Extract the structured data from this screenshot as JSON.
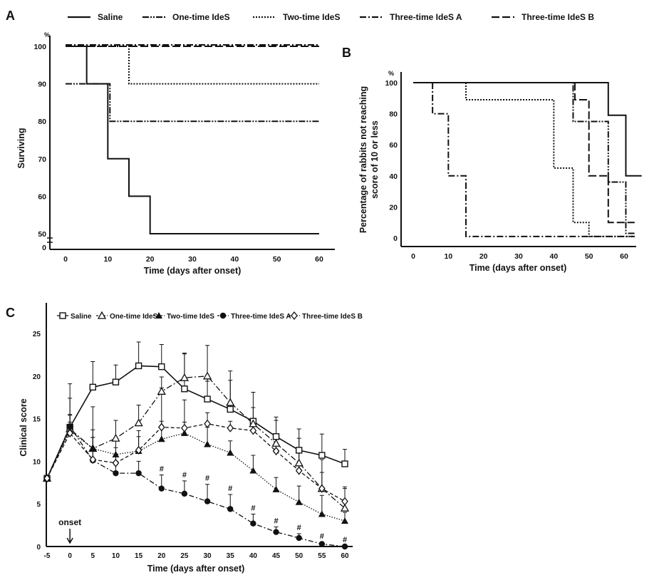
{
  "chart_data": [
    {
      "panel": "A",
      "type": "line",
      "step": true,
      "legend": [
        "Saline",
        "One-time IdeS",
        "Two-time IdeS",
        "Three-time IdeS A",
        "Three-time IdeS B"
      ],
      "legend_placement": "top",
      "xlabel": "Time (days after onset)",
      "ylabel": "Surviving",
      "yunit": "%",
      "xticks": [
        0,
        10,
        20,
        30,
        40,
        50,
        60
      ],
      "yticks": [
        50,
        60,
        70,
        80,
        90,
        100
      ],
      "ybreak_tick": 0,
      "xlim": [
        -3,
        63
      ],
      "ylim": [
        50,
        100
      ],
      "grid": false,
      "series": [
        {
          "name": "Saline",
          "points": [
            [
              0,
              100
            ],
            [
              5,
              90
            ],
            [
              10,
              70
            ],
            [
              15,
              60
            ],
            [
              20,
              50
            ],
            [
              60,
              50
            ]
          ]
        },
        {
          "name": "One-time IdeS",
          "points": [
            [
              0,
              90
            ],
            [
              10.5,
              80
            ],
            [
              60,
              80
            ]
          ]
        },
        {
          "name": "Two-time IdeS",
          "points": [
            [
              0,
              100
            ],
            [
              15,
              90
            ],
            [
              60,
              90
            ]
          ]
        },
        {
          "name": "Three-time IdeS A",
          "points": [
            [
              0,
              100
            ],
            [
              60,
              100
            ]
          ]
        },
        {
          "name": "Three-time IdeS B",
          "points": [
            [
              0,
              100
            ],
            [
              60,
              100
            ]
          ]
        }
      ]
    },
    {
      "panel": "B",
      "type": "line",
      "step": true,
      "xlabel": "Time (days after onset)",
      "ylabel": "Percentage of rabbits not reaching score of 10 or less",
      "yunit": "%",
      "xticks": [
        0,
        10,
        20,
        30,
        40,
        50,
        60
      ],
      "yticks": [
        0,
        20,
        40,
        60,
        80,
        100
      ],
      "xlim": [
        -3,
        63
      ],
      "ylim": [
        0,
        100
      ],
      "grid": false,
      "series": [
        {
          "name": "Saline",
          "points": [
            [
              0,
              100
            ],
            [
              55.5,
              79
            ],
            [
              60.5,
              40
            ],
            [
              65,
              40
            ]
          ]
        },
        {
          "name": "One-time IdeS",
          "points": [
            [
              0,
              100
            ],
            [
              45.5,
              75
            ],
            [
              55.5,
              36
            ],
            [
              60.5,
              3
            ],
            [
              63,
              3
            ]
          ]
        },
        {
          "name": "Two-time IdeS",
          "points": [
            [
              15,
              100
            ],
            [
              15,
              89
            ],
            [
              40,
              45
            ],
            [
              45.5,
              10
            ],
            [
              50,
              1
            ],
            [
              63,
              1
            ]
          ]
        },
        {
          "name": "Three-time IdeS A",
          "points": [
            [
              5.5,
              100
            ],
            [
              5.5,
              80
            ],
            [
              10,
              40
            ],
            [
              15,
              1
            ],
            [
              63,
              1
            ]
          ]
        },
        {
          "name": "Three-time IdeS B",
          "points": [
            [
              46,
              100
            ],
            [
              46,
              89
            ],
            [
              50,
              40
            ],
            [
              55.5,
              10
            ],
            [
              63,
              10
            ]
          ]
        }
      ]
    },
    {
      "panel": "C",
      "type": "line",
      "xlabel": "Time (days after onset)",
      "ylabel": "Clinical score",
      "xticks": [
        -5,
        0,
        5,
        10,
        15,
        20,
        25,
        30,
        35,
        40,
        45,
        50,
        55,
        60
      ],
      "yticks": [
        0,
        5,
        10,
        15,
        20,
        25
      ],
      "xlim": [
        -5,
        60
      ],
      "ylim": [
        0,
        28
      ],
      "grid": false,
      "legend_placement": "top",
      "annotation": "onset",
      "significance_mark": "#",
      "significance_x": [
        20,
        25,
        30,
        35,
        40,
        45,
        50,
        55,
        60
      ],
      "x": [
        -5,
        0,
        5,
        10,
        15,
        20,
        25,
        30,
        35,
        40,
        45,
        50,
        55,
        60
      ],
      "series": [
        {
          "name": "Saline",
          "marker": "open-square",
          "values": [
            8,
            14,
            18.7,
            19.3,
            21.2,
            21.1,
            18.5,
            17.3,
            16.1,
            14.7,
            12.9,
            11.3,
            10.7,
            9.7
          ],
          "error_upper": [
            null,
            19.1,
            21.7,
            21.3,
            24,
            23.7,
            22.7,
            23.6,
            20.6,
            18.1,
            15.2,
            13.8,
            13.2,
            11.4
          ]
        },
        {
          "name": "One-time IdeS",
          "marker": "open-triangle",
          "values": [
            8,
            13.8,
            11.5,
            12.7,
            14.5,
            18.2,
            19.8,
            20,
            16.9,
            14.4,
            12.1,
            9.8,
            6.8,
            4.5
          ],
          "error_upper": [
            null,
            17.4,
            16.4,
            14.8,
            16.6,
            19.9,
            22.6,
            19.4,
            19.5,
            16.3,
            14.8,
            12.7,
            10.2,
            6.8
          ]
        },
        {
          "name": "Two-time IdeS",
          "marker": "filled-triangle",
          "values": [
            8,
            13.6,
            11.5,
            10.8,
            11.2,
            12.6,
            13.3,
            12,
            11,
            8.9,
            6.7,
            5.2,
            3.8,
            3
          ],
          "error_upper": [
            null,
            15.5,
            13.7,
            12.7,
            12.9,
            14.7,
            17.2,
            14,
            12.4,
            10.7,
            8.1,
            7.1,
            6,
            4
          ]
        },
        {
          "name": "Three-time IdeS A",
          "marker": "filled-circle",
          "values": [
            8,
            14.1,
            10.1,
            8.6,
            8.6,
            6.8,
            6.2,
            5.3,
            4.4,
            2.7,
            1.7,
            1,
            0.3,
            0
          ],
          "error_upper": [
            null,
            15.4,
            12.8,
            9.6,
            10,
            8.4,
            7.7,
            7.3,
            6.1,
            3.8,
            2.3,
            1.5,
            0.5,
            0.1
          ]
        },
        {
          "name": "Three-time IdeS B",
          "marker": "open-diamond",
          "values": [
            8,
            13.3,
            10.2,
            9.8,
            11.3,
            14,
            13.9,
            14.4,
            13.9,
            13.6,
            11.2,
            8.9,
            6.8,
            5.3
          ],
          "error_upper": [
            null,
            14.6,
            12.8,
            11.6,
            13.6,
            18.6,
            14.6,
            15.7,
            14.7,
            14.4,
            13.2,
            11.3,
            8.7,
            7
          ]
        }
      ]
    }
  ],
  "panel_labels": [
    "A",
    "B",
    "C"
  ],
  "colors": {
    "ink": "#111111",
    "background": "#ffffff"
  }
}
